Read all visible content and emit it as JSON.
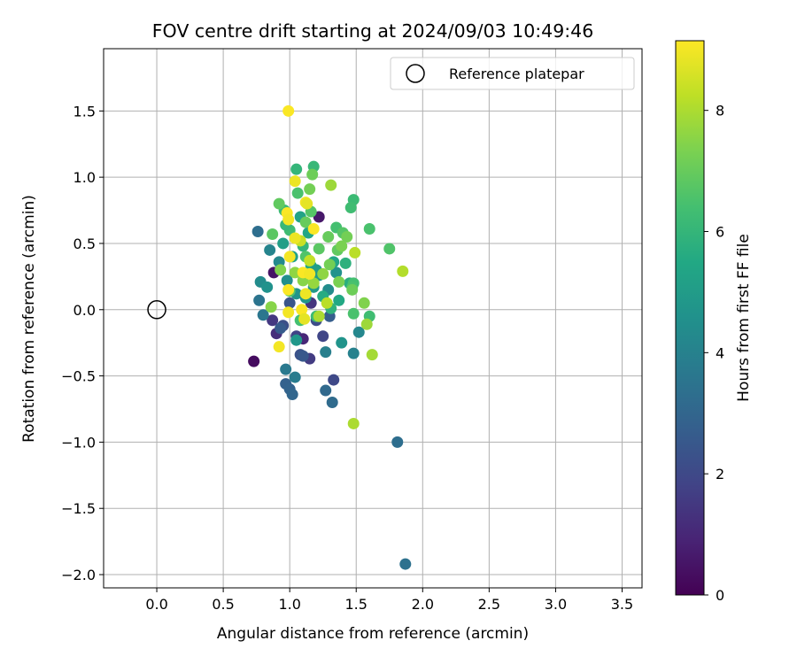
{
  "chart_data": {
    "type": "scatter",
    "title": "FOV centre drift starting at 2024/09/03 10:49:46",
    "xlabel": "Angular distance from reference (arcmin)",
    "ylabel": "Rotation from reference (arcmin)",
    "xlim": [
      -0.4,
      3.65
    ],
    "ylim": [
      -2.1,
      1.97
    ],
    "xticks": [
      0.0,
      0.5,
      1.0,
      1.5,
      2.0,
      2.5,
      3.0,
      3.5
    ],
    "yticks": [
      -2.0,
      -1.5,
      -1.0,
      -0.5,
      0.0,
      0.5,
      1.0,
      1.5
    ],
    "xtick_labels": [
      "0.0",
      "0.5",
      "1.0",
      "1.5",
      "2.0",
      "2.5",
      "3.0",
      "3.5"
    ],
    "ytick_labels": [
      "−2.0",
      "−1.5",
      "−1.0",
      "−0.5",
      "0.0",
      "0.5",
      "1.0",
      "1.5"
    ],
    "grid": true,
    "legend": {
      "placement": "top-right",
      "entries": [
        "Reference platepar"
      ]
    },
    "reference_point": {
      "x": 0.0,
      "y": 0.0
    },
    "colorbar": {
      "label": "Hours from first FF file",
      "range": [
        0,
        9.15
      ],
      "ticks": [
        0,
        2,
        4,
        6,
        8
      ],
      "tick_labels": [
        "0",
        "2",
        "4",
        "6",
        "8"
      ],
      "colormap": "viridis"
    },
    "points": [
      {
        "x": 0.73,
        "y": -0.39,
        "h": 0.3
      },
      {
        "x": 0.88,
        "y": 0.28,
        "h": 0.5
      },
      {
        "x": 1.22,
        "y": 0.7,
        "h": 0.6
      },
      {
        "x": 0.9,
        "y": -0.18,
        "h": 1.2
      },
      {
        "x": 0.87,
        "y": -0.08,
        "h": 1.5
      },
      {
        "x": 1.05,
        "y": -0.2,
        "h": 1.8
      },
      {
        "x": 1.1,
        "y": -0.22,
        "h": 1.0
      },
      {
        "x": 1.15,
        "y": -0.37,
        "h": 1.6
      },
      {
        "x": 1.25,
        "y": -0.2,
        "h": 1.9
      },
      {
        "x": 1.33,
        "y": -0.53,
        "h": 2.0
      },
      {
        "x": 0.95,
        "y": -0.12,
        "h": 2.2
      },
      {
        "x": 1.0,
        "y": 0.05,
        "h": 2.4
      },
      {
        "x": 0.93,
        "y": -0.14,
        "h": 2.6
      },
      {
        "x": 1.08,
        "y": -0.34,
        "h": 2.3
      },
      {
        "x": 1.1,
        "y": -0.35,
        "h": 2.5
      },
      {
        "x": 1.2,
        "y": -0.08,
        "h": 2.1
      },
      {
        "x": 1.3,
        "y": -0.05,
        "h": 2.7
      },
      {
        "x": 1.16,
        "y": 0.05,
        "h": 1.4
      },
      {
        "x": 0.97,
        "y": -0.56,
        "h": 2.8
      },
      {
        "x": 1.0,
        "y": -0.6,
        "h": 2.9
      },
      {
        "x": 1.02,
        "y": -0.64,
        "h": 3.0
      },
      {
        "x": 1.27,
        "y": -0.61,
        "h": 3.1
      },
      {
        "x": 1.32,
        "y": -0.7,
        "h": 3.2
      },
      {
        "x": 1.81,
        "y": -1.0,
        "h": 3.3
      },
      {
        "x": 1.87,
        "y": -1.92,
        "h": 3.4
      },
      {
        "x": 0.76,
        "y": 0.59,
        "h": 3.3
      },
      {
        "x": 0.77,
        "y": 0.07,
        "h": 3.5
      },
      {
        "x": 0.8,
        "y": -0.04,
        "h": 3.6
      },
      {
        "x": 0.97,
        "y": -0.45,
        "h": 3.7
      },
      {
        "x": 1.04,
        "y": -0.51,
        "h": 3.8
      },
      {
        "x": 1.27,
        "y": -0.32,
        "h": 3.9
      },
      {
        "x": 1.48,
        "y": -0.33,
        "h": 4.0
      },
      {
        "x": 1.52,
        "y": -0.17,
        "h": 4.2
      },
      {
        "x": 0.85,
        "y": 0.45,
        "h": 4.1
      },
      {
        "x": 0.92,
        "y": 0.36,
        "h": 4.3
      },
      {
        "x": 0.78,
        "y": 0.21,
        "h": 4.4
      },
      {
        "x": 0.83,
        "y": 0.17,
        "h": 4.6
      },
      {
        "x": 0.98,
        "y": 0.22,
        "h": 4.5
      },
      {
        "x": 1.05,
        "y": 0.12,
        "h": 4.7
      },
      {
        "x": 1.12,
        "y": 0.09,
        "h": 4.8
      },
      {
        "x": 1.18,
        "y": 0.17,
        "h": 4.9
      },
      {
        "x": 1.22,
        "y": 0.26,
        "h": 5.0
      },
      {
        "x": 1.29,
        "y": 0.15,
        "h": 4.4
      },
      {
        "x": 1.35,
        "y": 0.28,
        "h": 4.6
      },
      {
        "x": 1.05,
        "y": -0.23,
        "h": 4.8
      },
      {
        "x": 1.39,
        "y": -0.25,
        "h": 4.7
      },
      {
        "x": 0.95,
        "y": 0.5,
        "h": 5.1
      },
      {
        "x": 1.02,
        "y": 0.4,
        "h": 5.2
      },
      {
        "x": 1.08,
        "y": 0.7,
        "h": 5.3
      },
      {
        "x": 1.14,
        "y": 0.58,
        "h": 5.4
      },
      {
        "x": 1.16,
        "y": 0.33,
        "h": 5.5
      },
      {
        "x": 1.2,
        "y": 0.3,
        "h": 5.1
      },
      {
        "x": 1.25,
        "y": 0.1,
        "h": 5.6
      },
      {
        "x": 1.33,
        "y": 0.36,
        "h": 5.4
      },
      {
        "x": 1.42,
        "y": 0.35,
        "h": 5.8
      },
      {
        "x": 1.45,
        "y": 0.2,
        "h": 5.7
      },
      {
        "x": 1.37,
        "y": 0.07,
        "h": 5.5
      },
      {
        "x": 1.31,
        "y": 0.01,
        "h": 5.9
      },
      {
        "x": 1.05,
        "y": 1.06,
        "h": 6.0
      },
      {
        "x": 1.18,
        "y": 1.08,
        "h": 6.1
      },
      {
        "x": 0.96,
        "y": 0.75,
        "h": 6.2
      },
      {
        "x": 1.0,
        "y": 0.6,
        "h": 6.3
      },
      {
        "x": 0.97,
        "y": 0.64,
        "h": 6.1
      },
      {
        "x": 1.1,
        "y": 0.48,
        "h": 6.0
      },
      {
        "x": 1.48,
        "y": 0.83,
        "h": 6.2
      },
      {
        "x": 1.46,
        "y": 0.77,
        "h": 6.3
      },
      {
        "x": 1.35,
        "y": 0.62,
        "h": 6.4
      },
      {
        "x": 1.6,
        "y": 0.61,
        "h": 6.5
      },
      {
        "x": 1.75,
        "y": 0.46,
        "h": 6.6
      },
      {
        "x": 1.48,
        "y": 0.2,
        "h": 6.4
      },
      {
        "x": 1.47,
        "y": 0.17,
        "h": 6.5
      },
      {
        "x": 1.6,
        "y": -0.05,
        "h": 6.3
      },
      {
        "x": 1.48,
        "y": -0.03,
        "h": 6.5
      },
      {
        "x": 1.2,
        "y": -0.05,
        "h": 6.2
      },
      {
        "x": 1.08,
        "y": -0.08,
        "h": 6.4
      },
      {
        "x": 1.12,
        "y": 0.4,
        "h": 6.6
      },
      {
        "x": 1.06,
        "y": 0.88,
        "h": 6.5
      },
      {
        "x": 1.16,
        "y": 0.74,
        "h": 6.7
      },
      {
        "x": 0.87,
        "y": 0.57,
        "h": 6.8
      },
      {
        "x": 0.92,
        "y": 0.8,
        "h": 6.9
      },
      {
        "x": 1.0,
        "y": 0.14,
        "h": 6.6
      },
      {
        "x": 1.22,
        "y": 0.46,
        "h": 6.8
      },
      {
        "x": 1.36,
        "y": 0.45,
        "h": 6.9
      },
      {
        "x": 1.4,
        "y": 0.58,
        "h": 6.7
      },
      {
        "x": 1.29,
        "y": 0.55,
        "h": 7.0
      },
      {
        "x": 1.17,
        "y": 1.02,
        "h": 7.1
      },
      {
        "x": 1.15,
        "y": 0.91,
        "h": 7.2
      },
      {
        "x": 1.12,
        "y": 0.66,
        "h": 7.0
      },
      {
        "x": 1.43,
        "y": 0.55,
        "h": 7.2
      },
      {
        "x": 1.39,
        "y": 0.48,
        "h": 7.3
      },
      {
        "x": 1.56,
        "y": 0.05,
        "h": 7.4
      },
      {
        "x": 1.47,
        "y": 0.15,
        "h": 7.1
      },
      {
        "x": 1.37,
        "y": 0.21,
        "h": 7.3
      },
      {
        "x": 1.3,
        "y": 0.34,
        "h": 7.2
      },
      {
        "x": 0.86,
        "y": 0.02,
        "h": 7.5
      },
      {
        "x": 0.93,
        "y": 0.3,
        "h": 7.4
      },
      {
        "x": 1.04,
        "y": 0.28,
        "h": 7.6
      },
      {
        "x": 1.1,
        "y": 0.22,
        "h": 7.5
      },
      {
        "x": 1.18,
        "y": 0.2,
        "h": 7.7
      },
      {
        "x": 1.25,
        "y": 0.27,
        "h": 7.6
      },
      {
        "x": 1.31,
        "y": 0.94,
        "h": 7.8
      },
      {
        "x": 1.58,
        "y": -0.11,
        "h": 7.8
      },
      {
        "x": 1.62,
        "y": -0.34,
        "h": 7.9
      },
      {
        "x": 1.48,
        "y": -0.86,
        "h": 8.0
      },
      {
        "x": 1.85,
        "y": 0.29,
        "h": 8.1
      },
      {
        "x": 1.49,
        "y": 0.43,
        "h": 8.2
      },
      {
        "x": 1.22,
        "y": -0.05,
        "h": 8.0
      },
      {
        "x": 1.28,
        "y": 0.05,
        "h": 8.2
      },
      {
        "x": 1.15,
        "y": 0.37,
        "h": 8.3
      },
      {
        "x": 1.08,
        "y": 0.52,
        "h": 8.4
      },
      {
        "x": 1.04,
        "y": 0.97,
        "h": 8.9
      },
      {
        "x": 1.12,
        "y": 0.81,
        "h": 9.0
      },
      {
        "x": 1.13,
        "y": 0.8,
        "h": 8.8
      },
      {
        "x": 0.98,
        "y": 0.73,
        "h": 9.1
      },
      {
        "x": 0.99,
        "y": 0.68,
        "h": 9.0
      },
      {
        "x": 1.18,
        "y": 0.61,
        "h": 9.1
      },
      {
        "x": 1.04,
        "y": 0.54,
        "h": 8.9
      },
      {
        "x": 1.0,
        "y": 0.4,
        "h": 9.0
      },
      {
        "x": 1.1,
        "y": 0.28,
        "h": 9.1
      },
      {
        "x": 1.15,
        "y": 0.27,
        "h": 9.0
      },
      {
        "x": 0.99,
        "y": 0.15,
        "h": 9.1
      },
      {
        "x": 1.12,
        "y": 0.12,
        "h": 8.9
      },
      {
        "x": 0.99,
        "y": -0.02,
        "h": 9.0
      },
      {
        "x": 1.09,
        "y": 0.0,
        "h": 9.1
      },
      {
        "x": 1.11,
        "y": -0.07,
        "h": 8.8
      },
      {
        "x": 0.92,
        "y": -0.28,
        "h": 9.0
      },
      {
        "x": 0.99,
        "y": 1.5,
        "h": 9.1
      }
    ]
  }
}
